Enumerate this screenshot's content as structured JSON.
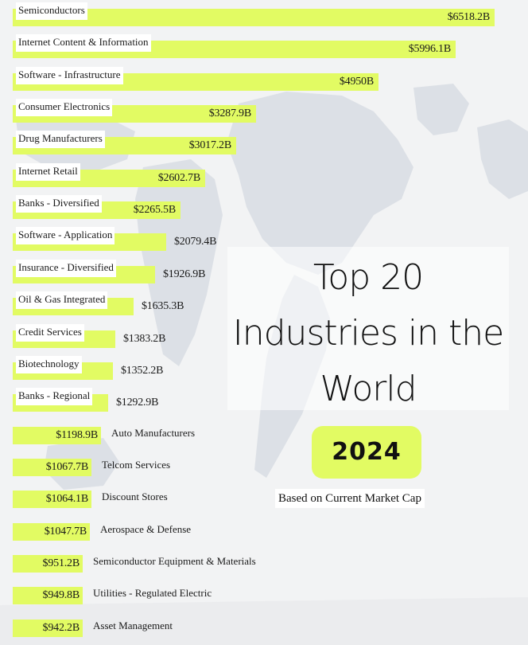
{
  "chart_data": {
    "type": "bar",
    "orientation": "horizontal",
    "title": "Top 20 Industries in the World",
    "year": "2024",
    "subtitle": "Based on Current Market Cap",
    "unit": "Billion USD",
    "bar_color": "#e2fb63",
    "categories": [
      "Semiconductors",
      "Internet Content & Information",
      "Software - Infrastructure",
      "Consumer Electronics",
      "Drug Manufacturers",
      "Internet Retail",
      "Banks - Diversified",
      "Software - Application",
      "Insurance - Diversified",
      "Oil & Gas Integrated",
      "Credit Services",
      "Biotechnology",
      "Banks - Regional",
      "Auto Manufacturers",
      "Telcom Services",
      "Discount Stores",
      "Aerospace & Defense",
      "Semiconductor Equipment & Materials",
      "Utilities - Regulated Electric",
      "Asset Management"
    ],
    "values": [
      6518.2,
      5996.1,
      4950,
      3287.9,
      3017.2,
      2602.7,
      2265.5,
      2079.4,
      1926.9,
      1635.3,
      1383.2,
      1352.2,
      1292.9,
      1198.9,
      1067.7,
      1064.1,
      1047.7,
      951.2,
      949.8,
      942.2
    ],
    "value_labels": [
      "$6518.2B",
      "$5996.1B",
      "$4950B",
      "$3287.9B",
      "$3017.2B",
      "$2602.7B",
      "$2265.5B",
      "$2079.4B",
      "$1926.9B",
      "$1635.3B",
      "$1383.2B",
      "$1352.2B",
      "$1292.9B",
      "$1198.9B",
      "$1067.7B",
      "$1064.1B",
      "$1047.7B",
      "$951.2B",
      "$949.8B",
      "$942.2B"
    ]
  },
  "header": {
    "title_lines": [
      "Top 20",
      "Industries in the",
      "World"
    ],
    "year": "2024",
    "subtitle": "Based on Current Market Cap"
  }
}
